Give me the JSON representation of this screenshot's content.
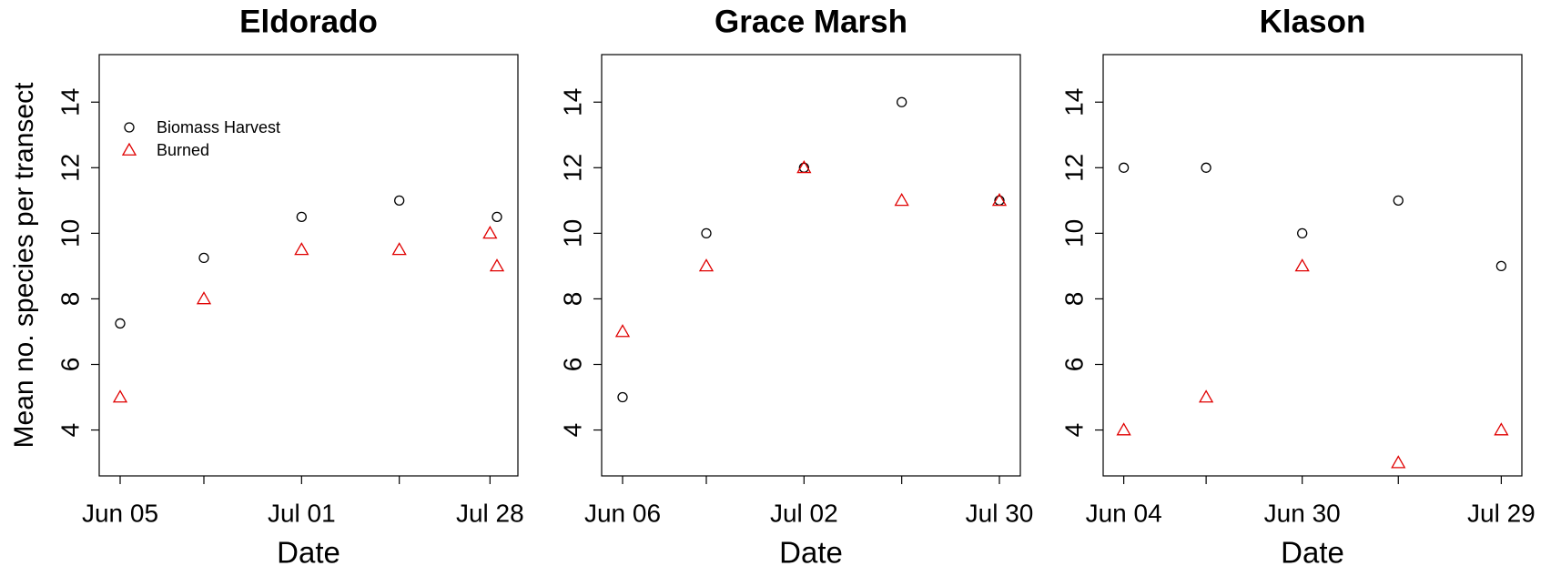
{
  "chart_data": [
    {
      "type": "scatter",
      "title": "Eldorado",
      "xlabel": "Date",
      "ylabel": "Mean no. species per transect",
      "xlim": [
        "Jun 02",
        "Aug 01"
      ],
      "xticks": [
        "Jun 05",
        "Jul 01",
        "Jul 28"
      ],
      "xminorticks": [
        "Jun 17",
        "Jul 15"
      ],
      "ylim": [
        2.6,
        15.45
      ],
      "yticks": [
        4,
        6,
        8,
        10,
        12,
        14
      ],
      "legend": "top-left",
      "series": [
        {
          "name": "Biomass Harvest",
          "marker": "circle",
          "color": "#000000",
          "x": [
            "Jun 05",
            "Jun 17",
            "Jul 01",
            "Jul 15",
            "Jul 29"
          ],
          "values": [
            7.25,
            9.25,
            10.5,
            11,
            10.5
          ]
        },
        {
          "name": "Burned",
          "marker": "triangle",
          "color": "#e00000",
          "x": [
            "Jun 05",
            "Jun 17",
            "Jul 01",
            "Jul 15",
            "Jul 28",
            "Jul 29"
          ],
          "values": [
            5,
            8,
            9.5,
            9.5,
            10,
            9
          ]
        }
      ]
    },
    {
      "type": "scatter",
      "title": "Grace Marsh",
      "xlabel": "Date",
      "xlim": [
        "Jun 03",
        "Aug 02"
      ],
      "xticks": [
        "Jun 06",
        "Jul 02",
        "Jul 30"
      ],
      "xminorticks": [
        "Jun 18",
        "Jul 16"
      ],
      "ylim": [
        2.6,
        15.45
      ],
      "yticks": [
        4,
        6,
        8,
        10,
        12,
        14
      ],
      "series": [
        {
          "marker": "circle",
          "color": "#000000",
          "x": [
            "Jun 06",
            "Jun 18",
            "Jul 02",
            "Jul 16",
            "Jul 30"
          ],
          "values": [
            5,
            10,
            12,
            14,
            11
          ]
        },
        {
          "marker": "triangle",
          "color": "#e00000",
          "x": [
            "Jun 06",
            "Jun 18",
            "Jul 02",
            "Jul 16",
            "Jul 30"
          ],
          "values": [
            7,
            9,
            12,
            11,
            11
          ]
        }
      ]
    },
    {
      "type": "scatter",
      "title": "Klason",
      "xlabel": "Date",
      "xlim": [
        "Jun 01",
        "Aug 01"
      ],
      "xticks": [
        "Jun 04",
        "Jun 30",
        "Jul 29"
      ],
      "xminorticks": [
        "Jun 16",
        "Jul 14"
      ],
      "ylim": [
        2.6,
        15.45
      ],
      "yticks": [
        4,
        6,
        8,
        10,
        12,
        14
      ],
      "series": [
        {
          "marker": "circle",
          "color": "#000000",
          "x": [
            "Jun 04",
            "Jun 16",
            "Jun 30",
            "Jul 14",
            "Jul 29"
          ],
          "values": [
            12,
            12,
            10,
            11,
            9
          ]
        },
        {
          "marker": "triangle",
          "color": "#e00000",
          "x": [
            "Jun 04",
            "Jun 16",
            "Jun 30",
            "Jul 14",
            "Jul 29"
          ],
          "values": [
            4,
            5,
            9,
            3,
            4
          ]
        }
      ]
    }
  ]
}
